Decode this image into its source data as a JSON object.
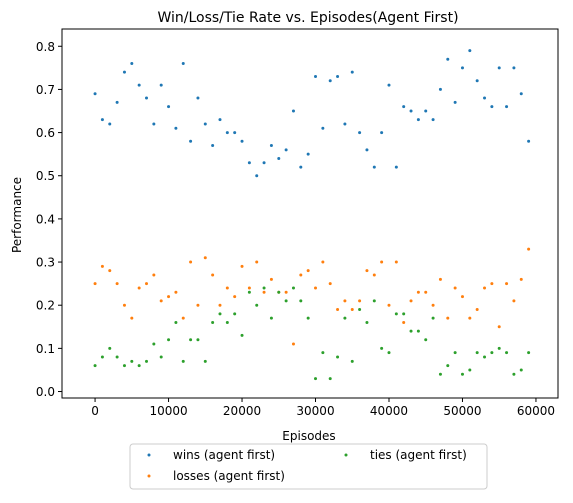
{
  "chart_data": {
    "type": "scatter",
    "title": "Win/Loss/Tie Rate vs. Episodes(Agent First)",
    "xlabel": "Episodes",
    "ylabel": "Performance",
    "xlim": [
      -4500,
      63000
    ],
    "ylim": [
      -0.015,
      0.84
    ],
    "xticks": [
      0,
      10000,
      20000,
      30000,
      40000,
      50000,
      60000
    ],
    "xtick_labels": [
      "0",
      "10000",
      "20000",
      "30000",
      "40000",
      "50000",
      "60000"
    ],
    "yticks": [
      0.0,
      0.1,
      0.2,
      0.3,
      0.4,
      0.5,
      0.6,
      0.7,
      0.8
    ],
    "ytick_labels": [
      "0.0",
      "0.1",
      "0.2",
      "0.3",
      "0.4",
      "0.5",
      "0.6",
      "0.7",
      "0.8"
    ],
    "grid": false,
    "legend_placement": "below",
    "x": [
      0,
      1000,
      2000,
      3000,
      4000,
      5000,
      6000,
      7000,
      8000,
      9000,
      10000,
      11000,
      12000,
      13000,
      14000,
      15000,
      16000,
      17000,
      18000,
      19000,
      20000,
      21000,
      22000,
      23000,
      24000,
      25000,
      26000,
      27000,
      28000,
      29000,
      30000,
      31000,
      32000,
      33000,
      34000,
      35000,
      36000,
      37000,
      38000,
      39000,
      40000,
      41000,
      42000,
      43000,
      44000,
      45000,
      46000,
      47000,
      48000,
      49000,
      50000,
      51000,
      52000,
      53000,
      54000,
      55000,
      56000,
      57000,
      58000,
      59000
    ],
    "series": [
      {
        "name": "wins (agent first)",
        "color": "#1f77b4",
        "values": [
          0.69,
          0.63,
          0.62,
          0.67,
          0.74,
          0.76,
          0.71,
          0.68,
          0.62,
          0.71,
          0.66,
          0.61,
          0.76,
          0.58,
          0.68,
          0.62,
          0.57,
          0.63,
          0.6,
          0.6,
          0.58,
          0.53,
          0.5,
          0.53,
          0.57,
          0.54,
          0.56,
          0.65,
          0.52,
          0.55,
          0.73,
          0.61,
          0.72,
          0.73,
          0.62,
          0.74,
          0.6,
          0.56,
          0.52,
          0.6,
          0.71,
          0.52,
          0.66,
          0.65,
          0.63,
          0.65,
          0.63,
          0.7,
          0.77,
          0.67,
          0.75,
          0.79,
          0.72,
          0.68,
          0.66,
          0.75,
          0.66,
          0.75,
          0.69,
          0.58
        ]
      },
      {
        "name": "losses (agent first)",
        "color": "#ff7f0e",
        "values": [
          0.25,
          0.29,
          0.28,
          0.25,
          0.2,
          0.17,
          0.24,
          0.25,
          0.27,
          0.21,
          0.22,
          0.23,
          0.17,
          0.3,
          0.2,
          0.31,
          0.27,
          0.2,
          0.24,
          0.22,
          0.29,
          0.24,
          0.3,
          0.23,
          0.26,
          0.23,
          0.23,
          0.11,
          0.27,
          0.28,
          0.24,
          0.3,
          0.25,
          0.19,
          0.21,
          0.19,
          0.21,
          0.28,
          0.27,
          0.3,
          0.2,
          0.3,
          0.16,
          0.21,
          0.23,
          0.23,
          0.2,
          0.26,
          0.17,
          0.24,
          0.22,
          0.17,
          0.19,
          0.24,
          0.25,
          0.15,
          0.25,
          0.21,
          0.26,
          0.33
        ]
      },
      {
        "name": "ties (agent first)",
        "color": "#2ca02c",
        "values": [
          0.06,
          0.08,
          0.1,
          0.08,
          0.06,
          0.07,
          0.06,
          0.07,
          0.11,
          0.08,
          0.12,
          0.16,
          0.07,
          0.12,
          0.12,
          0.07,
          0.16,
          0.18,
          0.16,
          0.18,
          0.13,
          0.23,
          0.2,
          0.24,
          0.17,
          0.23,
          0.21,
          0.24,
          0.21,
          0.17,
          0.03,
          0.09,
          0.03,
          0.08,
          0.17,
          0.07,
          0.19,
          0.16,
          0.21,
          0.1,
          0.09,
          0.18,
          0.18,
          0.14,
          0.14,
          0.12,
          0.17,
          0.04,
          0.06,
          0.09,
          0.04,
          0.05,
          0.09,
          0.08,
          0.09,
          0.1,
          0.09,
          0.04,
          0.05,
          0.09
        ]
      }
    ]
  }
}
